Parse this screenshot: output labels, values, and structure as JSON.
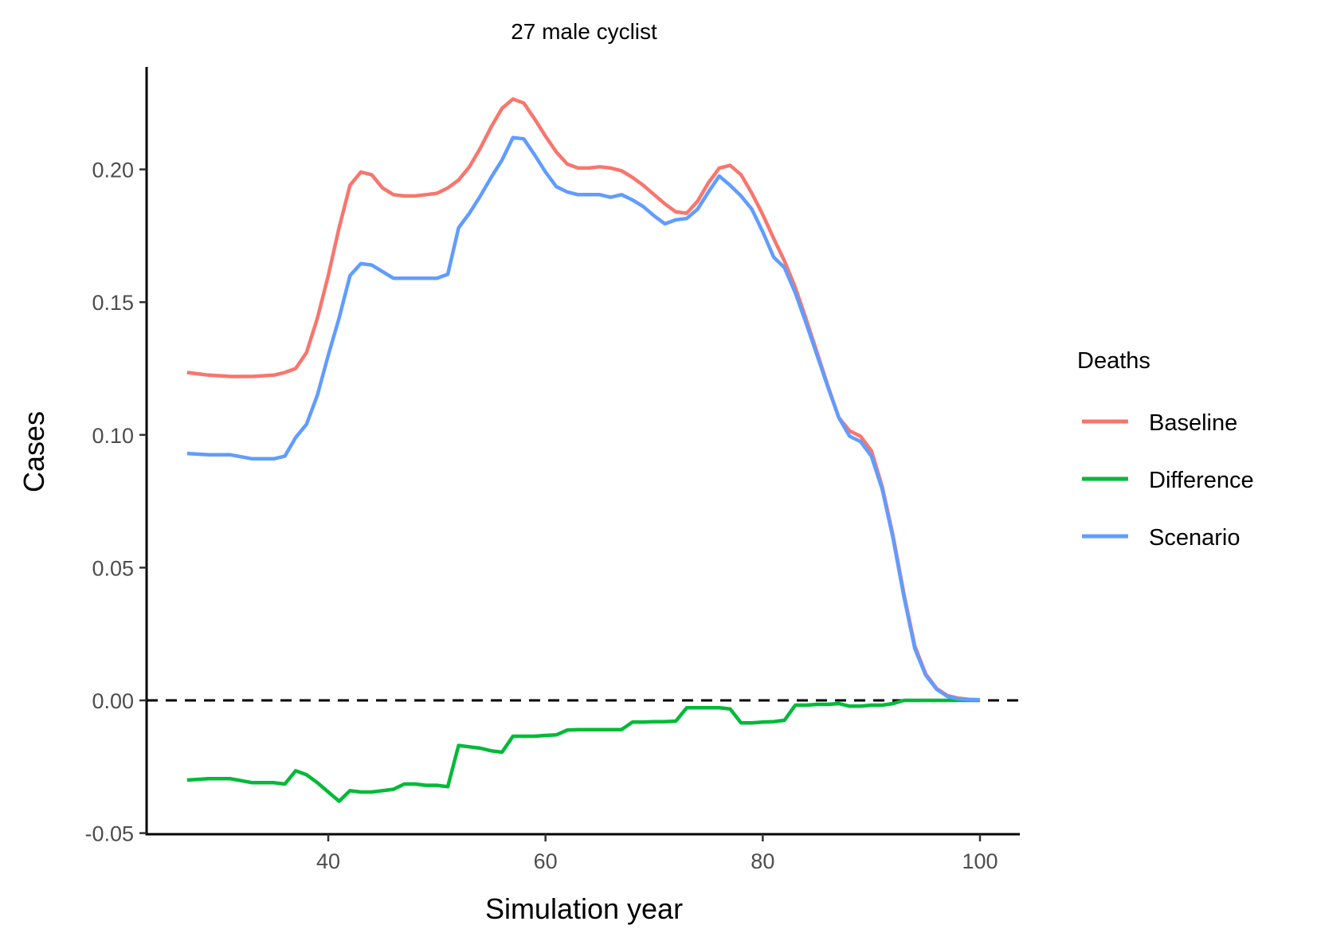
{
  "chart_data": {
    "type": "line",
    "title": "27 male cyclist",
    "xlabel": "Simulation year",
    "ylabel": "Cases",
    "xlim": [
      24.5,
      104
    ],
    "ylim": [
      -0.05,
      0.24
    ],
    "x_ticks": [
      40,
      60,
      80,
      100
    ],
    "x_tick_labels": [
      "40",
      "60",
      "80",
      "100"
    ],
    "y_ticks": [
      -0.05,
      0.0,
      0.05,
      0.1,
      0.15,
      0.2
    ],
    "y_tick_labels": [
      "-0.05",
      "0.00",
      "0.05",
      "0.10",
      "0.15",
      "0.20"
    ],
    "reference_line": {
      "y": 0,
      "style": "dashed"
    },
    "grid": false,
    "legend": {
      "title": "Deaths",
      "position": "right"
    },
    "series": [
      {
        "name": "Baseline",
        "color": "#F8766D",
        "x": [
          27,
          29,
          31,
          33,
          35,
          36,
          37,
          38,
          39,
          40,
          41,
          42,
          43,
          44,
          45,
          46,
          47,
          48,
          49,
          50,
          51,
          52,
          53,
          54,
          55,
          56,
          57,
          58,
          59,
          60,
          61,
          62,
          63,
          64,
          65,
          66,
          67,
          68,
          69,
          70,
          71,
          72,
          73,
          74,
          75,
          76,
          77,
          78,
          79,
          80,
          81,
          82,
          83,
          84,
          85,
          86,
          87,
          88,
          89,
          90,
          91,
          92,
          93,
          94,
          95,
          96,
          97,
          98,
          99,
          100
        ],
        "values": [
          0.1235,
          0.1225,
          0.122,
          0.122,
          0.1225,
          0.1235,
          0.125,
          0.131,
          0.144,
          0.16,
          0.178,
          0.194,
          0.199,
          0.198,
          0.193,
          0.1905,
          0.19,
          0.19,
          0.1905,
          0.191,
          0.193,
          0.196,
          0.201,
          0.208,
          0.216,
          0.223,
          0.2265,
          0.225,
          0.219,
          0.2125,
          0.2065,
          0.202,
          0.2005,
          0.2005,
          0.201,
          0.2005,
          0.1995,
          0.197,
          0.194,
          0.1905,
          0.187,
          0.184,
          0.1835,
          0.188,
          0.195,
          0.2005,
          0.2015,
          0.198,
          0.191,
          0.183,
          0.174,
          0.1655,
          0.1555,
          0.1435,
          0.131,
          0.1185,
          0.1065,
          0.1015,
          0.0995,
          0.094,
          0.0805,
          0.062,
          0.04,
          0.0205,
          0.01,
          0.0045,
          0.0018,
          0.0008,
          0.0004,
          0.0002
        ]
      },
      {
        "name": "Difference",
        "color": "#00BA38",
        "x": [
          27,
          29,
          31,
          33,
          35,
          36,
          37,
          38,
          39,
          40,
          41,
          42,
          43,
          44,
          45,
          46,
          47,
          48,
          49,
          50,
          51,
          52,
          53,
          54,
          55,
          56,
          57,
          58,
          59,
          60,
          61,
          62,
          63,
          64,
          65,
          66,
          67,
          68,
          69,
          70,
          71,
          72,
          73,
          74,
          75,
          76,
          77,
          78,
          79,
          80,
          81,
          82,
          83,
          84,
          85,
          86,
          87,
          88,
          89,
          90,
          91,
          92,
          93,
          94,
          95,
          96,
          97,
          98,
          99,
          100
        ],
        "values": [
          -0.03,
          -0.0295,
          -0.0295,
          -0.031,
          -0.031,
          -0.0315,
          -0.0265,
          -0.028,
          -0.031,
          -0.0345,
          -0.038,
          -0.034,
          -0.0345,
          -0.0345,
          -0.034,
          -0.0335,
          -0.0315,
          -0.0315,
          -0.032,
          -0.032,
          -0.0325,
          -0.017,
          -0.0175,
          -0.018,
          -0.019,
          -0.0195,
          -0.0135,
          -0.0135,
          -0.0135,
          -0.0132,
          -0.013,
          -0.0112,
          -0.011,
          -0.011,
          -0.011,
          -0.011,
          -0.011,
          -0.0082,
          -0.0082,
          -0.008,
          -0.008,
          -0.0078,
          -0.0028,
          -0.0028,
          -0.0028,
          -0.0028,
          -0.0032,
          -0.0085,
          -0.0085,
          -0.0082,
          -0.008,
          -0.0075,
          -0.0018,
          -0.0018,
          -0.0015,
          -0.0015,
          -0.0012,
          -0.0022,
          -0.0022,
          -0.0018,
          -0.0018,
          -0.0012,
          0.0,
          0.0,
          0.0,
          0.0,
          0.0,
          0.0,
          0.0,
          0.0
        ]
      },
      {
        "name": "Scenario",
        "color": "#619CFF",
        "x": [
          27,
          29,
          31,
          33,
          35,
          36,
          37,
          38,
          39,
          40,
          41,
          42,
          43,
          44,
          45,
          46,
          47,
          48,
          49,
          50,
          51,
          52,
          53,
          54,
          55,
          56,
          57,
          58,
          59,
          60,
          61,
          62,
          63,
          64,
          65,
          66,
          67,
          68,
          69,
          70,
          71,
          72,
          73,
          74,
          75,
          76,
          77,
          78,
          79,
          80,
          81,
          82,
          83,
          84,
          85,
          86,
          87,
          88,
          89,
          90,
          91,
          92,
          93,
          94,
          95,
          96,
          97,
          98,
          99,
          100
        ],
        "values": [
          0.093,
          0.0925,
          0.0925,
          0.091,
          0.091,
          0.092,
          0.099,
          0.104,
          0.115,
          0.13,
          0.144,
          0.16,
          0.1645,
          0.164,
          0.1615,
          0.159,
          0.159,
          0.159,
          0.159,
          0.159,
          0.1605,
          0.178,
          0.1835,
          0.19,
          0.197,
          0.2035,
          0.212,
          0.2115,
          0.2055,
          0.199,
          0.1935,
          0.1915,
          0.1905,
          0.1905,
          0.1905,
          0.1895,
          0.1905,
          0.1885,
          0.186,
          0.1825,
          0.1795,
          0.181,
          0.1815,
          0.185,
          0.1915,
          0.1975,
          0.194,
          0.19,
          0.185,
          0.1765,
          0.167,
          0.163,
          0.1535,
          0.142,
          0.13,
          0.118,
          0.1065,
          0.0995,
          0.0975,
          0.092,
          0.0795,
          0.061,
          0.039,
          0.0195,
          0.0095,
          0.0042,
          0.0015,
          0.0006,
          0.0003,
          0.0002
        ]
      }
    ]
  }
}
